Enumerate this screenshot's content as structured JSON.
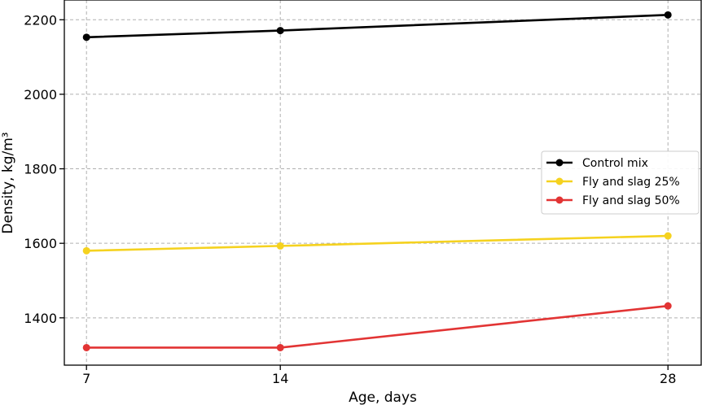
{
  "chart_data": {
    "type": "line",
    "xlabel": "Age, days",
    "ylabel": "Density, kg/m³",
    "x": [
      7,
      14,
      28
    ],
    "x_ticks": [
      "7",
      "14",
      "28"
    ],
    "y_ticks": [
      "1400",
      "1600",
      "1800",
      "2000",
      "2200"
    ],
    "xlim": [
      6.2,
      29.2
    ],
    "ylim": [
      1273,
      2253
    ],
    "grid": true,
    "legend_position": "right",
    "series": [
      {
        "name": "Control mix",
        "color": "#000000",
        "values": [
          2153,
          2171,
          2213
        ]
      },
      {
        "name": "Fly and slag 25%",
        "color": "#f5d21f",
        "values": [
          1580,
          1593,
          1620
        ]
      },
      {
        "name": "Fly and slag 50%",
        "color": "#e23434",
        "values": [
          1320,
          1320,
          1432
        ]
      }
    ]
  }
}
